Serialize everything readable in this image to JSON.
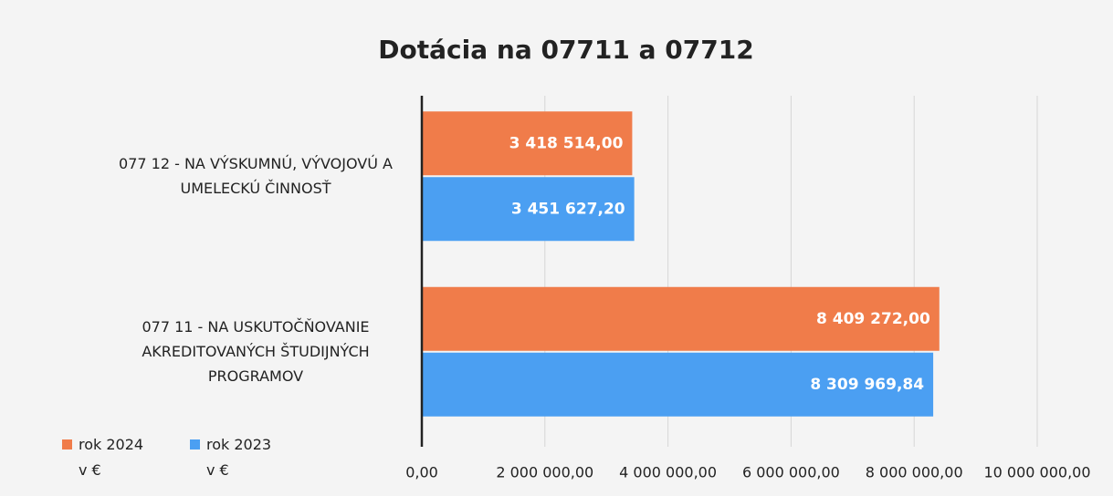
{
  "chart_data": {
    "type": "bar",
    "orientation": "horizontal",
    "title": "Dotácia na 07711 a 07712",
    "categories": [
      "077 12 - NA VÝSKUMNÚ, VÝVOJOVÚ A UMELECKÚ ČINNOSŤ",
      "077 11 - NA USKUTOČŇOVANIE AKREDITOVANÝCH ŠTUDIJNÝCH PROGRAMOV"
    ],
    "series": [
      {
        "name": "rok 2024 v €",
        "color": "#f07c4a",
        "values": [
          3418514.0,
          8409272.0
        ],
        "value_labels": [
          "3 418 514,00",
          "8 409 272,00"
        ]
      },
      {
        "name": "rok 2023 v €",
        "color": "#4b9ff2",
        "values": [
          3451627.2,
          8309969.84
        ],
        "value_labels": [
          "3 451 627,20",
          "8 309 969,84"
        ]
      }
    ],
    "xlim": [
      0,
      10000000
    ],
    "xticks": [
      {
        "value": 0,
        "label": "0,00"
      },
      {
        "value": 2000000,
        "label": "2 000 000,00"
      },
      {
        "value": 4000000,
        "label": "4 000 000,00"
      },
      {
        "value": 6000000,
        "label": "6 000 000,00"
      },
      {
        "value": 8000000,
        "label": "8 000 000,00"
      },
      {
        "value": 10000000,
        "label": "10 000 000,00"
      }
    ],
    "grid": true,
    "legend": "bottom-left"
  }
}
